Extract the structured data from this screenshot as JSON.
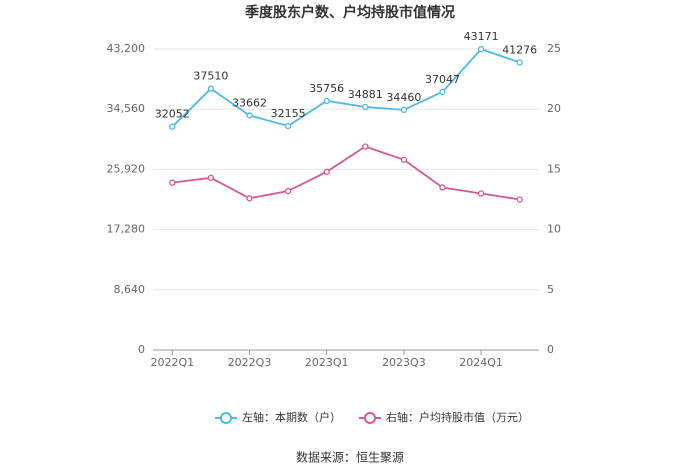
{
  "chart_data": {
    "type": "line",
    "title": "季度股东户数、户均持股市值情况",
    "categories": [
      "2022Q1",
      null,
      "2022Q3",
      null,
      "2023Q1",
      null,
      "2023Q3",
      null,
      "2024Q1",
      null
    ],
    "series": [
      {
        "name": "左轴：本期数（户）",
        "color": "#4db8e8",
        "values": [
          32052,
          37510,
          33662,
          32155,
          35756,
          34881,
          34460,
          37047,
          43171,
          41276
        ]
      },
      {
        "name": "右轴：户均持股市值（万元）",
        "color": "#d4579b",
        "axis": "y2",
        "values": [
          13.9,
          14.3,
          12.6,
          13.2,
          14.8,
          16.9,
          15.8,
          13.5,
          13.0,
          12.5
        ]
      }
    ],
    "ylim": [
      0,
      43200
    ],
    "yticks": [
      0,
      {
        "value": 8640,
        "label": "8,640"
      },
      {
        "value": 17280,
        "label": "17,280"
      },
      {
        "value": 25920,
        "label": "25,920"
      },
      {
        "value": 34560,
        "label": "34,560"
      },
      {
        "value": 43200,
        "label": "43,200"
      }
    ],
    "y2lim": [
      0,
      25
    ],
    "y2ticks": [
      0,
      5,
      10,
      15,
      20,
      25
    ],
    "grid": true,
    "source": "数据来源：恒生聚源"
  }
}
